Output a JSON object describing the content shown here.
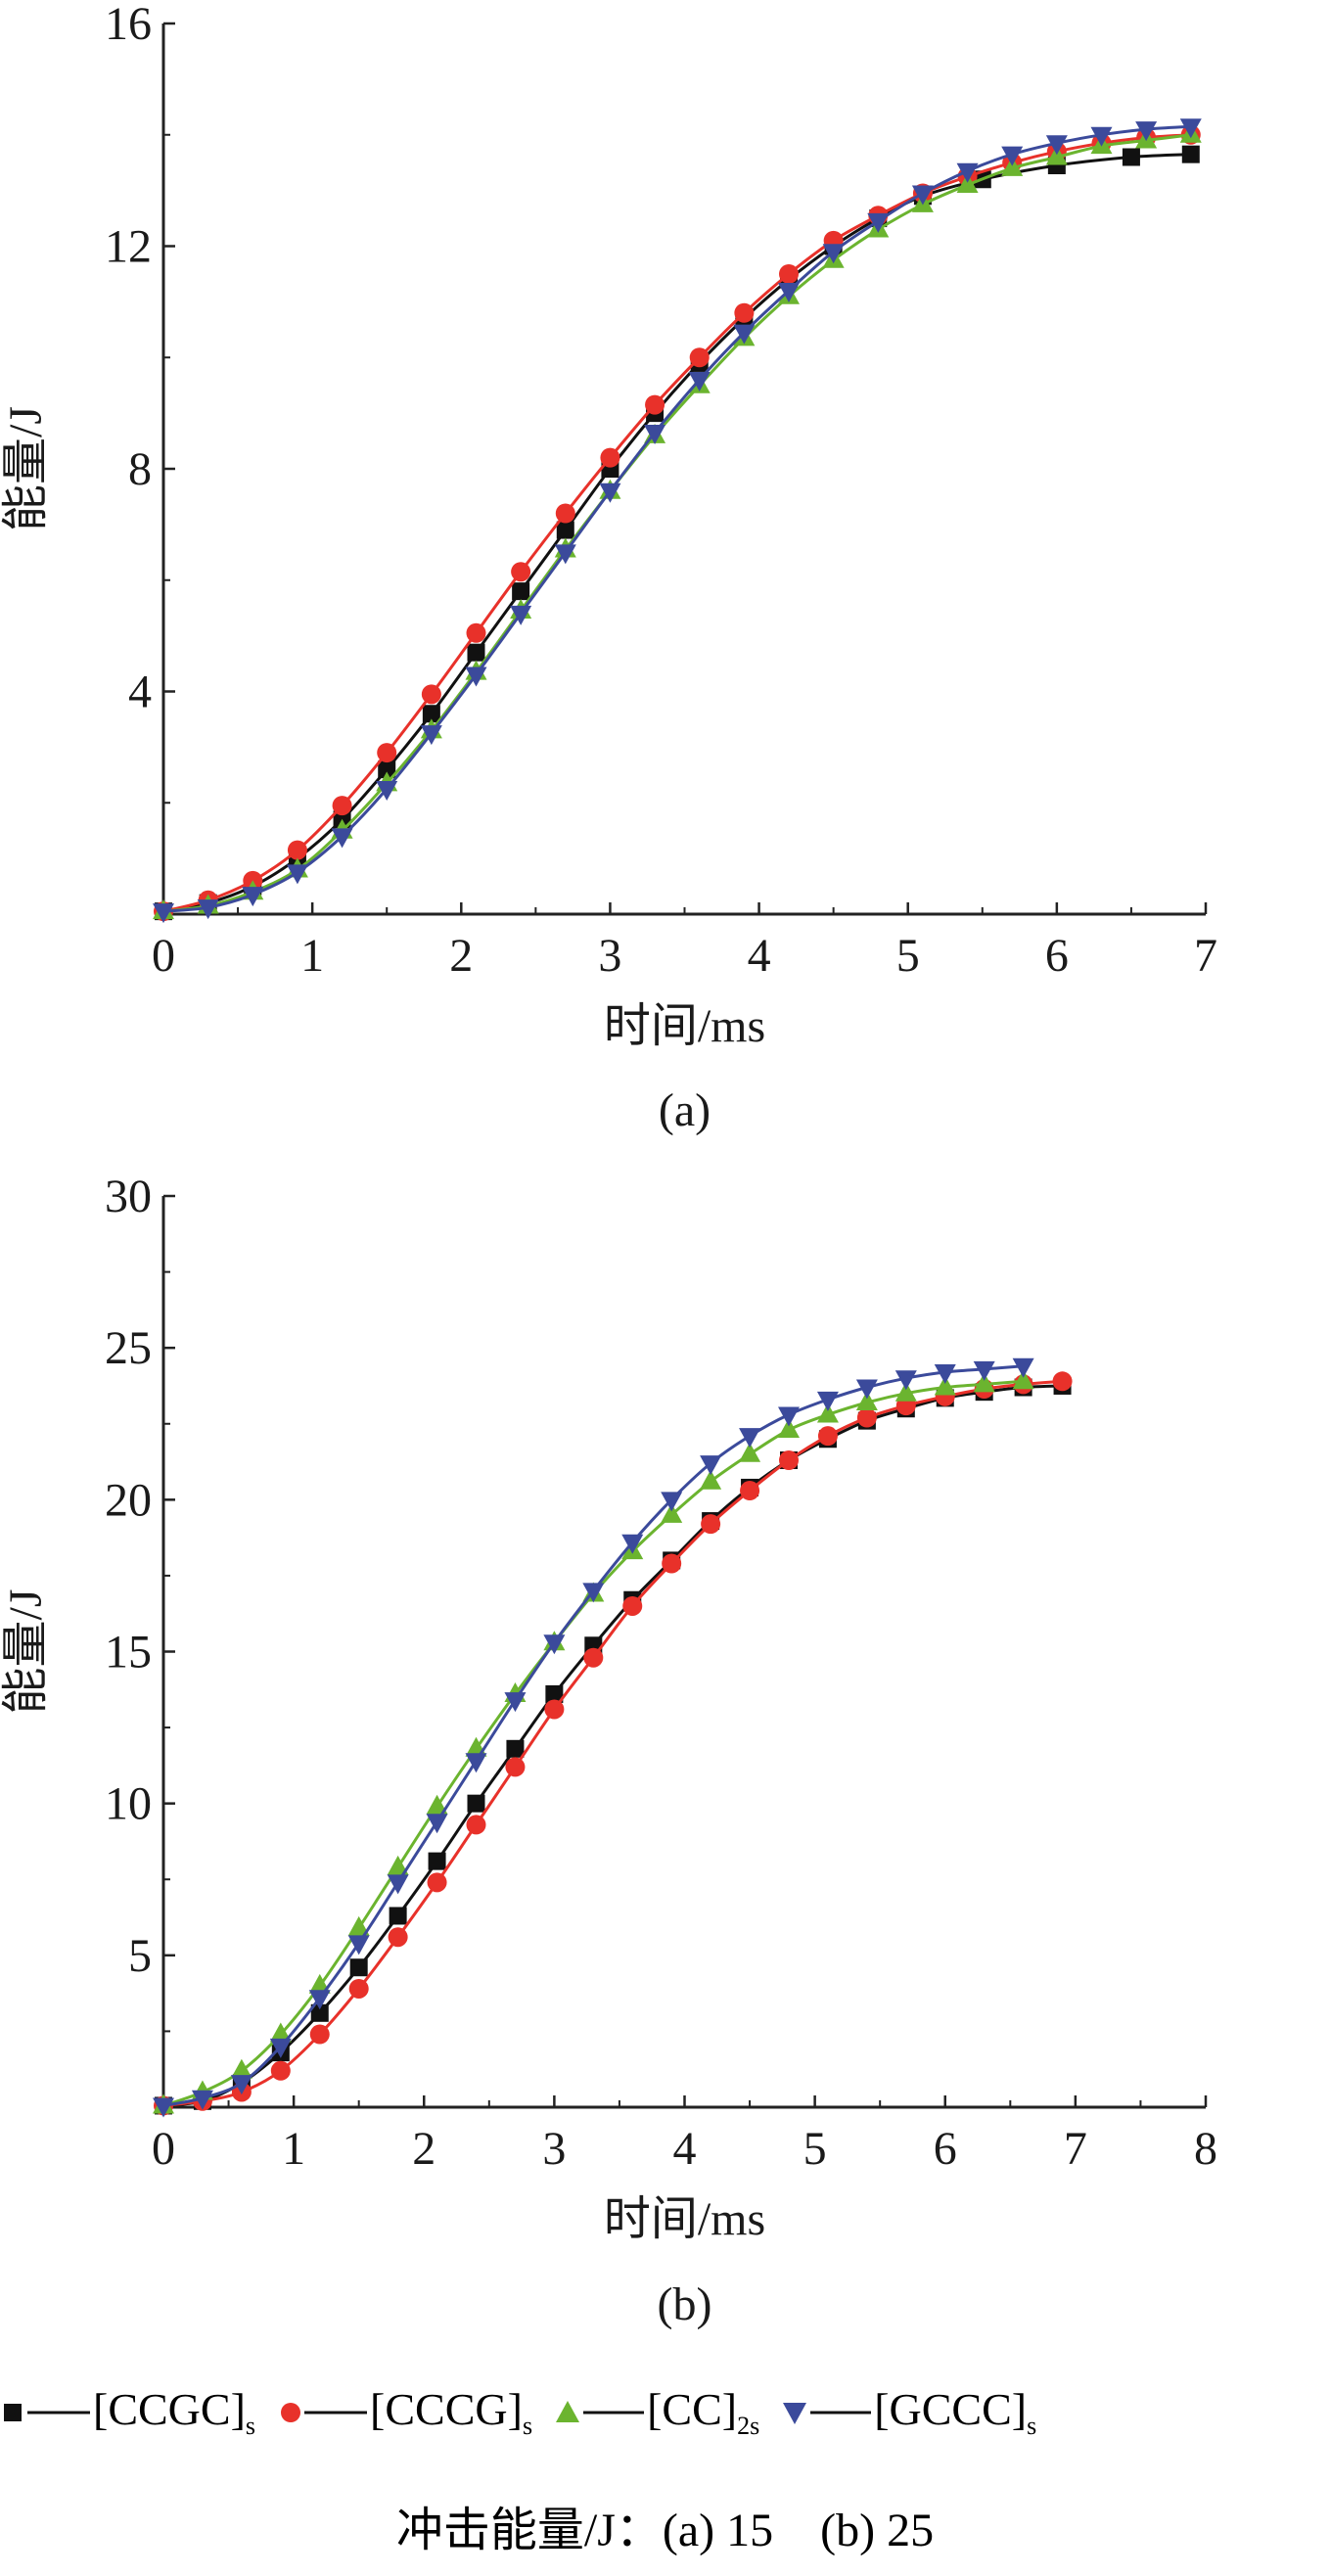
{
  "chart_data": [
    {
      "type": "line",
      "panel_label": "(a)",
      "xlabel": "时间/ms",
      "ylabel": "能量/J",
      "xlim": [
        0,
        7
      ],
      "ylim": [
        0,
        16
      ],
      "xticks": [
        "0",
        "1",
        "2",
        "3",
        "4",
        "5",
        "6",
        "7"
      ],
      "yticks": [
        "4",
        "8",
        "12",
        "16"
      ],
      "series": [
        {
          "name": "[CCGC]",
          "subscript": "s",
          "color": "#111111",
          "marker": "square",
          "x": [
            0,
            0.3,
            0.6,
            0.9,
            1.2,
            1.5,
            1.8,
            2.1,
            2.4,
            2.7,
            3.0,
            3.3,
            3.6,
            3.9,
            4.2,
            4.5,
            4.8,
            5.1,
            5.5,
            6.0,
            6.5,
            6.9
          ],
          "y": [
            0.05,
            0.2,
            0.5,
            1.0,
            1.7,
            2.6,
            3.6,
            4.7,
            5.8,
            6.9,
            8.0,
            9.0,
            9.9,
            10.7,
            11.4,
            12.0,
            12.5,
            12.9,
            13.2,
            13.45,
            13.6,
            13.65
          ]
        },
        {
          "name": "[CCCG]",
          "subscript": "s",
          "color": "#e8312a",
          "marker": "circle",
          "x": [
            0,
            0.3,
            0.6,
            0.9,
            1.2,
            1.5,
            1.8,
            2.1,
            2.4,
            2.7,
            3.0,
            3.3,
            3.6,
            3.9,
            4.2,
            4.5,
            4.8,
            5.1,
            5.4,
            5.7,
            6.0,
            6.3,
            6.6,
            6.9
          ],
          "y": [
            0.05,
            0.25,
            0.6,
            1.15,
            1.95,
            2.9,
            3.95,
            5.05,
            6.15,
            7.2,
            8.2,
            9.15,
            10.0,
            10.8,
            11.5,
            12.1,
            12.55,
            12.95,
            13.25,
            13.5,
            13.7,
            13.85,
            13.95,
            14.0
          ]
        },
        {
          "name": "[CC]",
          "subscript": "2s",
          "color": "#6bb42f",
          "marker": "triangle-up",
          "x": [
            0,
            0.3,
            0.6,
            0.9,
            1.2,
            1.5,
            1.8,
            2.1,
            2.4,
            2.7,
            3.0,
            3.3,
            3.6,
            3.9,
            4.2,
            4.5,
            4.8,
            5.1,
            5.4,
            5.7,
            6.0,
            6.3,
            6.6,
            6.9
          ],
          "y": [
            0.05,
            0.15,
            0.4,
            0.8,
            1.5,
            2.35,
            3.3,
            4.35,
            5.45,
            6.55,
            7.6,
            8.6,
            9.5,
            10.35,
            11.1,
            11.75,
            12.3,
            12.75,
            13.1,
            13.4,
            13.6,
            13.8,
            13.9,
            14.0
          ]
        },
        {
          "name": "[GCCC]",
          "subscript": "s",
          "color": "#3b4a9b",
          "marker": "triangle-down",
          "x": [
            0,
            0.3,
            0.6,
            0.9,
            1.2,
            1.5,
            1.8,
            2.1,
            2.4,
            2.7,
            3.0,
            3.3,
            3.6,
            3.9,
            4.2,
            4.5,
            4.8,
            5.1,
            5.4,
            5.7,
            6.0,
            6.3,
            6.6,
            6.9
          ],
          "y": [
            0.05,
            0.12,
            0.35,
            0.75,
            1.4,
            2.25,
            3.25,
            4.3,
            5.4,
            6.5,
            7.6,
            8.65,
            9.6,
            10.45,
            11.2,
            11.9,
            12.45,
            12.95,
            13.35,
            13.65,
            13.85,
            14.0,
            14.1,
            14.15
          ]
        }
      ]
    },
    {
      "type": "line",
      "panel_label": "(b)",
      "xlabel": "时间/ms",
      "ylabel": "能量/J",
      "xlim": [
        0,
        8
      ],
      "ylim": [
        0,
        30
      ],
      "xticks": [
        "0",
        "1",
        "2",
        "3",
        "4",
        "5",
        "6",
        "7",
        "8"
      ],
      "yticks": [
        "5",
        "10",
        "15",
        "20",
        "25",
        "30"
      ],
      "series": [
        {
          "name": "[CCGC]",
          "subscript": "s",
          "color": "#111111",
          "marker": "square",
          "x": [
            0,
            0.3,
            0.6,
            0.9,
            1.2,
            1.5,
            1.8,
            2.1,
            2.4,
            2.7,
            3.0,
            3.3,
            3.6,
            3.9,
            4.2,
            4.5,
            4.8,
            5.1,
            5.4,
            5.7,
            6.0,
            6.3,
            6.6,
            6.9
          ],
          "y": [
            0.05,
            0.2,
            0.8,
            1.8,
            3.1,
            4.6,
            6.3,
            8.1,
            10.0,
            11.8,
            13.6,
            15.2,
            16.7,
            18.0,
            19.3,
            20.4,
            21.3,
            22.0,
            22.6,
            23.0,
            23.35,
            23.55,
            23.7,
            23.75
          ]
        },
        {
          "name": "[CCCG]",
          "subscript": "s",
          "color": "#e8312a",
          "marker": "circle",
          "x": [
            0,
            0.3,
            0.6,
            0.9,
            1.2,
            1.5,
            1.8,
            2.1,
            2.4,
            2.7,
            3.0,
            3.3,
            3.6,
            3.9,
            4.2,
            4.5,
            4.8,
            5.1,
            5.4,
            5.7,
            6.0,
            6.3,
            6.6,
            6.9
          ],
          "y": [
            0.05,
            0.2,
            0.5,
            1.2,
            2.4,
            3.9,
            5.6,
            7.4,
            9.3,
            11.2,
            13.1,
            14.8,
            16.5,
            17.9,
            19.2,
            20.3,
            21.3,
            22.1,
            22.7,
            23.1,
            23.4,
            23.65,
            23.8,
            23.9
          ]
        },
        {
          "name": "[CC]",
          "subscript": "2s",
          "color": "#6bb42f",
          "marker": "triangle-up",
          "x": [
            0,
            0.3,
            0.6,
            0.9,
            1.2,
            1.5,
            1.8,
            2.1,
            2.4,
            2.7,
            3.0,
            3.3,
            3.6,
            3.9,
            4.2,
            4.5,
            4.8,
            5.1,
            5.4,
            5.7,
            6.0,
            6.3,
            6.6
          ],
          "y": [
            0.05,
            0.5,
            1.2,
            2.4,
            4.0,
            5.9,
            7.9,
            9.9,
            11.8,
            13.6,
            15.3,
            16.9,
            18.3,
            19.5,
            20.6,
            21.5,
            22.3,
            22.8,
            23.2,
            23.5,
            23.7,
            23.8,
            23.9
          ]
        },
        {
          "name": "[GCCC]",
          "subscript": "s",
          "color": "#3b4a9b",
          "marker": "triangle-down",
          "x": [
            0,
            0.3,
            0.6,
            0.9,
            1.2,
            1.5,
            1.8,
            2.1,
            2.4,
            2.7,
            3.0,
            3.3,
            3.6,
            3.9,
            4.2,
            4.5,
            4.8,
            5.1,
            5.4,
            5.7,
            6.0,
            6.3,
            6.6
          ],
          "y": [
            0.05,
            0.3,
            0.8,
            2.0,
            3.6,
            5.4,
            7.4,
            9.4,
            11.4,
            13.4,
            15.3,
            17.0,
            18.6,
            20.0,
            21.2,
            22.1,
            22.8,
            23.3,
            23.7,
            24.0,
            24.2,
            24.3,
            24.4
          ]
        }
      ]
    }
  ],
  "caption": {
    "prefix": "冲击能量/J：",
    "a": "(a) 15",
    "b": "(b) 25"
  }
}
